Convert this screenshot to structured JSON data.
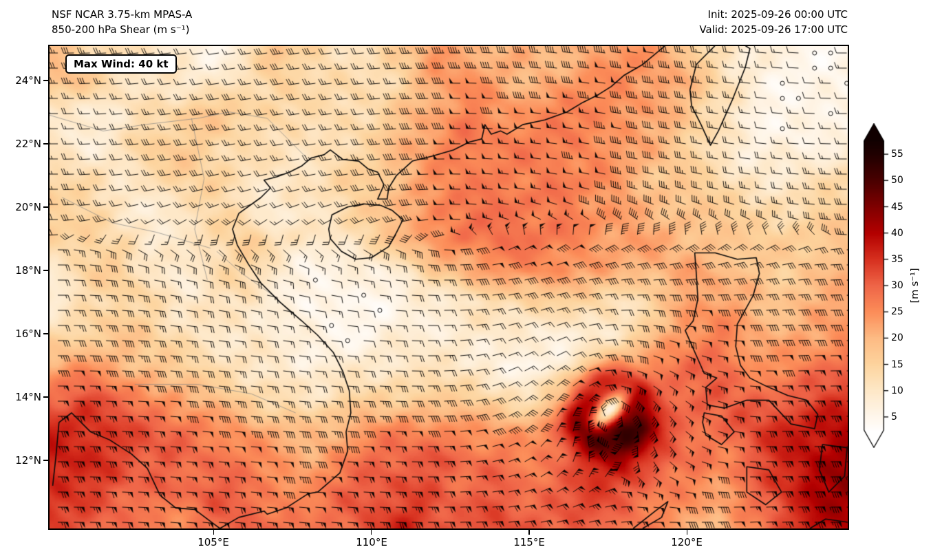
{
  "header": {
    "model_line": "NSF NCAR 3.75-km MPAS-A",
    "field_line": "850-200 hPa Shear (m s⁻¹)",
    "init_line": "Init: 2025-09-26 00:00 UTC",
    "valid_line": "Valid: 2025-09-26 17:00 UTC"
  },
  "map": {
    "max_wind_label": "Max Wind: 40 kt",
    "lat_tick_labels": [
      "24°N",
      "22°N",
      "20°N",
      "18°N",
      "16°N",
      "14°N",
      "12°N"
    ],
    "lon_tick_labels": [
      "105°E",
      "110°E",
      "115°E",
      "120°E"
    ]
  },
  "colorbar": {
    "tick_labels": [
      "55",
      "50",
      "45",
      "40",
      "35",
      "30",
      "25",
      "20",
      "15",
      "10",
      "5"
    ],
    "unit_label": "[m s⁻¹]"
  },
  "chart_data": {
    "type": "heatmap",
    "title": "NSF NCAR 3.75-km MPAS-A 850-200 hPa Shear (m s⁻¹)",
    "init_time": "2025-09-26 00:00 UTC",
    "valid_time": "2025-09-26 17:00 UTC",
    "max_wind_kt": 40,
    "units": "m s⁻¹",
    "overlay": "shear wind barbs with calm circles",
    "lon_range": [
      99.8,
      125.1
    ],
    "lat_range": [
      9.85,
      25.08
    ],
    "lon_ticks": [
      105,
      110,
      115,
      120
    ],
    "lat_ticks": [
      12,
      14,
      16,
      18,
      20,
      22,
      24
    ],
    "colorbar_ticks": [
      5,
      10,
      15,
      20,
      25,
      30,
      35,
      40,
      45,
      50,
      55
    ],
    "colorbar_extend": "both",
    "vortex_center": [
      117.55,
      13.6
    ],
    "colormap_stops": [
      [
        2,
        "#ffffff"
      ],
      [
        5,
        "#fff7ec"
      ],
      [
        10,
        "#fee8c8"
      ],
      [
        15,
        "#fdd49e"
      ],
      [
        20,
        "#fdbb84"
      ],
      [
        25,
        "#fc8d59"
      ],
      [
        30,
        "#ef6548"
      ],
      [
        35,
        "#d7301f"
      ],
      [
        40,
        "#b30000"
      ],
      [
        45,
        "#7f0000"
      ],
      [
        50,
        "#4a0000"
      ],
      [
        55,
        "#200000"
      ],
      [
        58,
        "#100000"
      ]
    ],
    "grid": {
      "lon_min": 100,
      "lon_step": 1,
      "lat_max": 25,
      "lat_step": 1,
      "values": [
        [
          18,
          15,
          12,
          10,
          8,
          6,
          10,
          18,
          14,
          12,
          12,
          16,
          25,
          22,
          20,
          20,
          20,
          22,
          25,
          22,
          18,
          12,
          8,
          6,
          5,
          5
        ],
        [
          20,
          16,
          12,
          10,
          10,
          8,
          12,
          16,
          14,
          12,
          12,
          15,
          22,
          25,
          22,
          20,
          22,
          24,
          25,
          24,
          20,
          14,
          8,
          5,
          5,
          5
        ],
        [
          8,
          8,
          10,
          12,
          15,
          18,
          16,
          14,
          12,
          12,
          14,
          18,
          22,
          26,
          25,
          24,
          26,
          26,
          25,
          22,
          18,
          12,
          7,
          5,
          5,
          6
        ],
        [
          10,
          8,
          10,
          16,
          16,
          15,
          13,
          11,
          10,
          13,
          15,
          20,
          25,
          28,
          27,
          26,
          27,
          26,
          24,
          20,
          16,
          11,
          7,
          6,
          6,
          8
        ],
        [
          14,
          12,
          10,
          14,
          16,
          14,
          12,
          10,
          12,
          14,
          16,
          20,
          24,
          26,
          27,
          27,
          27,
          26,
          22,
          18,
          16,
          12,
          10,
          9,
          11,
          13
        ],
        [
          17,
          14,
          9,
          8,
          12,
          14,
          10,
          8,
          10,
          13,
          16,
          22,
          26,
          27,
          28,
          28,
          27,
          25,
          22,
          20,
          18,
          16,
          13,
          13,
          14,
          16
        ],
        [
          14,
          17,
          12,
          8,
          10,
          14,
          16,
          12,
          9,
          11,
          14,
          20,
          26,
          28,
          28,
          28,
          27,
          25,
          23,
          22,
          20,
          18,
          16,
          15,
          17,
          18
        ],
        [
          10,
          14,
          17,
          10,
          8,
          12,
          14,
          10,
          6,
          6,
          7,
          10,
          16,
          21,
          24,
          26,
          25,
          22,
          20,
          21,
          22,
          20,
          18,
          16,
          18,
          20
        ],
        [
          8,
          12,
          15,
          13,
          10,
          10,
          12,
          8,
          5,
          4,
          5,
          6,
          8,
          10,
          13,
          15,
          15,
          13,
          11,
          16,
          22,
          24,
          20,
          18,
          20,
          22
        ],
        [
          12,
          15,
          18,
          15,
          12,
          10,
          10,
          8,
          6,
          5,
          6,
          8,
          8,
          9,
          10,
          8,
          6,
          9,
          12,
          18,
          25,
          27,
          22,
          20,
          22,
          25
        ],
        [
          22,
          24,
          21,
          18,
          15,
          12,
          11,
          9,
          8,
          8,
          10,
          10,
          10,
          9,
          7,
          5,
          9,
          16,
          22,
          26,
          28,
          30,
          25,
          25,
          27,
          30
        ],
        [
          30,
          32,
          29,
          26,
          22,
          18,
          15,
          12,
          11,
          13,
          15,
          16,
          16,
          15,
          13,
          12,
          18,
          34,
          38,
          31,
          28,
          30,
          30,
          30,
          32,
          35
        ],
        [
          36,
          36,
          33,
          31,
          29,
          26,
          23,
          20,
          18,
          21,
          24,
          26,
          26,
          25,
          23,
          22,
          30,
          45,
          46,
          36,
          30,
          28,
          32,
          36,
          38,
          40
        ],
        [
          38,
          36,
          33,
          31,
          29,
          29,
          26,
          25,
          22,
          26,
          29,
          31,
          31,
          29,
          28,
          26,
          30,
          36,
          38,
          33,
          28,
          26,
          30,
          36,
          40,
          42
        ],
        [
          36,
          33,
          31,
          29,
          29,
          31,
          29,
          26,
          26,
          29,
          31,
          33,
          31,
          29,
          31,
          29,
          31,
          33,
          31,
          28,
          25,
          23,
          28,
          35,
          40,
          42
        ],
        [
          33,
          31,
          29,
          26,
          26,
          29,
          31,
          29,
          26,
          29,
          33,
          36,
          33,
          31,
          33,
          31,
          29,
          31,
          29,
          26,
          22,
          20,
          25,
          32,
          38,
          40
        ]
      ]
    }
  }
}
